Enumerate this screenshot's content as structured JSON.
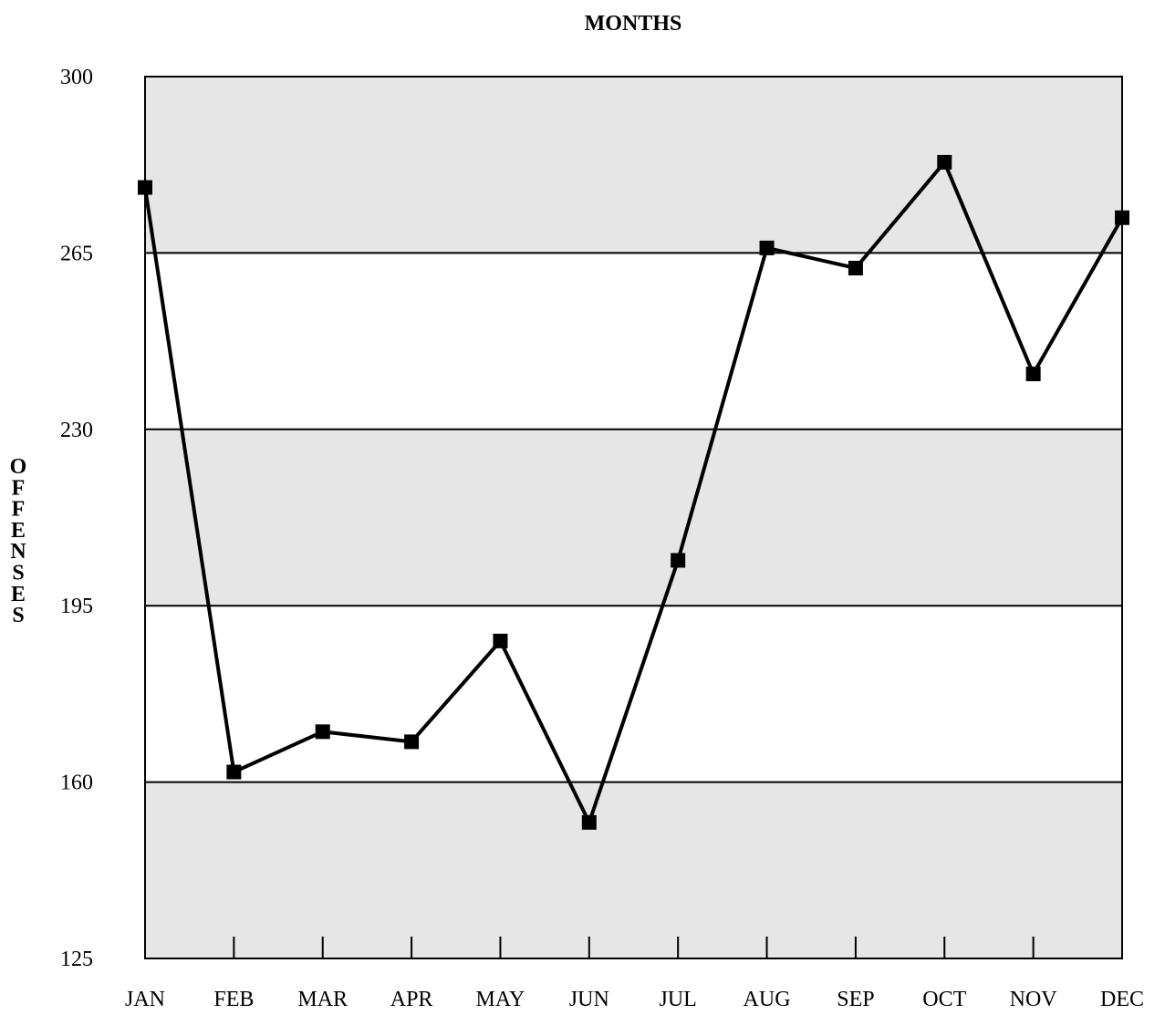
{
  "chart_data": {
    "type": "line",
    "title": "MONTHS",
    "xlabel": "",
    "ylabel": "OFFENSES",
    "categories": [
      "JAN",
      "FEB",
      "MAR",
      "APR",
      "MAY",
      "JUN",
      "JUL",
      "AUG",
      "SEP",
      "OCT",
      "NOV",
      "DEC"
    ],
    "series": [
      {
        "values": [
          278,
          162,
          170,
          168,
          188,
          152,
          204,
          266,
          262,
          283,
          241,
          272
        ]
      }
    ],
    "ylim": [
      125,
      300
    ],
    "yticks": [
      125,
      160,
      195,
      230,
      265,
      300
    ],
    "grid": true,
    "band_color": "#e6e6e6",
    "line_color": "#000000",
    "marker": "square"
  }
}
